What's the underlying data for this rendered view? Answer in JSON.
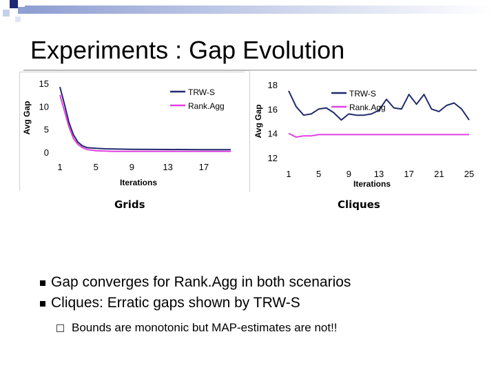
{
  "slide": {
    "title": "Experiments : Gap Evolution",
    "bullets": [
      "Gap converges for Rank.Agg in both scenarios",
      "Cliques: Erratic gaps shown by TRW-S"
    ],
    "sub_bullets": [
      "Bounds are monotonic but MAP-estimates are not!!"
    ],
    "colors": {
      "trws": "#1f2a6b",
      "rankagg": "#e040e0"
    }
  },
  "chart_data": [
    {
      "type": "line",
      "caption": "Grids",
      "xlabel": "Iterations",
      "ylabel": "Avg Gap",
      "xlim": [
        1,
        20
      ],
      "ylim": [
        0,
        15
      ],
      "xticks": [
        1,
        5,
        9,
        13,
        17
      ],
      "yticks": [
        0,
        5,
        10,
        15
      ],
      "legend": "top-right",
      "series": [
        {
          "name": "TRW-S",
          "color": "#1f2a6b",
          "x": [
            1,
            1.5,
            2,
            2.5,
            3,
            3.5,
            4,
            5,
            6,
            7,
            9,
            13,
            17,
            20
          ],
          "values": [
            14.2,
            10.5,
            6.5,
            3.8,
            2.2,
            1.4,
            1.0,
            0.85,
            0.75,
            0.7,
            0.65,
            0.6,
            0.55,
            0.55
          ]
        },
        {
          "name": "Rank.Agg",
          "color": "#e040e0",
          "x": [
            1,
            1.5,
            2,
            2.5,
            3,
            3.5,
            4,
            5,
            6,
            7,
            9,
            13,
            17,
            20
          ],
          "values": [
            12.5,
            9.0,
            5.5,
            3.0,
            1.7,
            1.0,
            0.6,
            0.35,
            0.25,
            0.2,
            0.2,
            0.2,
            0.2,
            0.2
          ]
        }
      ]
    },
    {
      "type": "line",
      "caption": "Cliques",
      "xlabel": "Iterations",
      "ylabel": "Avg Gap",
      "xlim": [
        1,
        25
      ],
      "ylim": [
        12,
        18
      ],
      "xticks": [
        1,
        5,
        9,
        13,
        17,
        21,
        25
      ],
      "yticks": [
        12,
        14,
        16,
        18
      ],
      "legend": "top-right",
      "series": [
        {
          "name": "TRW-S",
          "color": "#1f2a6b",
          "x": [
            1,
            2,
            3,
            4,
            5,
            6,
            7,
            8,
            9,
            10,
            11,
            12,
            13,
            14,
            15,
            16,
            17,
            18,
            19,
            20,
            21,
            22,
            23,
            24,
            25
          ],
          "values": [
            17.5,
            16.2,
            15.5,
            15.6,
            16.0,
            16.1,
            15.7,
            15.1,
            15.6,
            15.5,
            15.5,
            15.6,
            15.9,
            16.8,
            16.1,
            16.0,
            17.2,
            16.4,
            17.2,
            16.0,
            15.8,
            16.3,
            16.5,
            16.0,
            15.1
          ]
        },
        {
          "name": "Rank.Agg",
          "color": "#e040e0",
          "x": [
            1,
            2,
            3,
            4,
            5,
            6,
            7,
            8,
            9,
            10,
            11,
            12,
            13,
            14,
            15,
            16,
            17,
            18,
            19,
            20,
            21,
            22,
            23,
            24,
            25
          ],
          "values": [
            14.0,
            13.7,
            13.8,
            13.8,
            13.9,
            13.9,
            13.9,
            13.9,
            13.9,
            13.9,
            13.9,
            13.9,
            13.9,
            13.9,
            13.9,
            13.9,
            13.9,
            13.9,
            13.9,
            13.9,
            13.9,
            13.9,
            13.9,
            13.9,
            13.9
          ]
        }
      ]
    }
  ]
}
